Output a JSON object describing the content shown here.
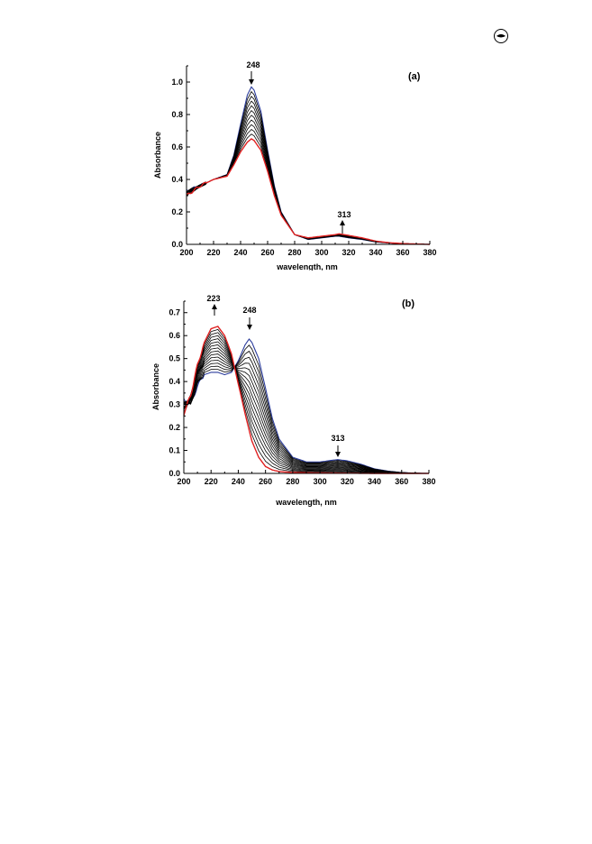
{
  "page": {
    "icon": "eye-logo-icon"
  },
  "chart_data": [
    {
      "type": "line",
      "panel_label": "(a)",
      "xlabel": "wavelength, nm",
      "ylabel": "Absorbance",
      "xlim": [
        200,
        380
      ],
      "ylim": [
        0,
        1.1
      ],
      "xticks": [
        "200",
        "220",
        "240",
        "260",
        "280",
        "300",
        "320",
        "340",
        "360",
        "380"
      ],
      "yticks": [
        "0.0",
        "0.2",
        "0.4",
        "0.6",
        "0.8",
        "1.0"
      ],
      "colors": {
        "first": "#2b3c9c",
        "last": "#e02020",
        "middle": "#000000"
      },
      "curve_count": 12,
      "peak_label_main": "248",
      "peak_label_minor": "313",
      "series_first": {
        "x": [
          200,
          210,
          220,
          230,
          235,
          240,
          245,
          248,
          250,
          255,
          260,
          265,
          270,
          280,
          290,
          300,
          310,
          313,
          320,
          330,
          340,
          350,
          360,
          370,
          380
        ],
        "y": [
          0.33,
          0.36,
          0.4,
          0.43,
          0.55,
          0.74,
          0.92,
          0.97,
          0.95,
          0.82,
          0.58,
          0.36,
          0.2,
          0.06,
          0.03,
          0.04,
          0.05,
          0.05,
          0.04,
          0.03,
          0.015,
          0.008,
          0.004,
          0.002,
          0.0
        ]
      },
      "series_last": {
        "x": [
          200,
          210,
          220,
          230,
          235,
          240,
          245,
          248,
          250,
          255,
          260,
          265,
          270,
          280,
          290,
          300,
          310,
          313,
          320,
          330,
          340,
          350,
          360,
          370,
          380
        ],
        "y": [
          0.3,
          0.36,
          0.4,
          0.42,
          0.49,
          0.57,
          0.63,
          0.65,
          0.64,
          0.58,
          0.45,
          0.3,
          0.18,
          0.06,
          0.04,
          0.05,
          0.06,
          0.065,
          0.055,
          0.04,
          0.02,
          0.01,
          0.005,
          0.002,
          0.0
        ]
      }
    },
    {
      "type": "line",
      "panel_label": "(b)",
      "xlabel": "wavelength, nm",
      "ylabel": "Absorbance",
      "xlim": [
        200,
        380
      ],
      "ylim": [
        0,
        0.75
      ],
      "xticks": [
        "200",
        "220",
        "240",
        "260",
        "280",
        "300",
        "320",
        "340",
        "360",
        "380"
      ],
      "yticks": [
        "0.0",
        "0.1",
        "0.2",
        "0.3",
        "0.4",
        "0.5",
        "0.6",
        "0.7"
      ],
      "colors": {
        "first": "#2b3c9c",
        "last": "#e02020",
        "middle": "#000000"
      },
      "curve_count": 16,
      "peak_label_223": "223",
      "peak_label_248": "248",
      "peak_label_313": "313",
      "series_first": {
        "x": [
          200,
          205,
          210,
          215,
          220,
          225,
          230,
          235,
          240,
          245,
          248,
          250,
          255,
          260,
          265,
          270,
          280,
          290,
          300,
          310,
          313,
          320,
          330,
          340,
          350,
          360,
          370,
          380
        ],
        "y": [
          0.32,
          0.3,
          0.38,
          0.43,
          0.44,
          0.44,
          0.43,
          0.44,
          0.49,
          0.56,
          0.585,
          0.57,
          0.5,
          0.37,
          0.24,
          0.15,
          0.07,
          0.05,
          0.05,
          0.058,
          0.06,
          0.055,
          0.04,
          0.02,
          0.01,
          0.004,
          0.001,
          0.0
        ]
      },
      "series_last": {
        "x": [
          200,
          205,
          210,
          215,
          220,
          225,
          230,
          235,
          240,
          245,
          250,
          255,
          260,
          265,
          270,
          280,
          290,
          300,
          320,
          340,
          360,
          380
        ],
        "y": [
          0.26,
          0.34,
          0.47,
          0.57,
          0.63,
          0.64,
          0.6,
          0.52,
          0.39,
          0.26,
          0.14,
          0.07,
          0.03,
          0.015,
          0.008,
          0.004,
          0.003,
          0.002,
          0.001,
          0.0,
          0.0,
          0.0
        ]
      }
    }
  ]
}
